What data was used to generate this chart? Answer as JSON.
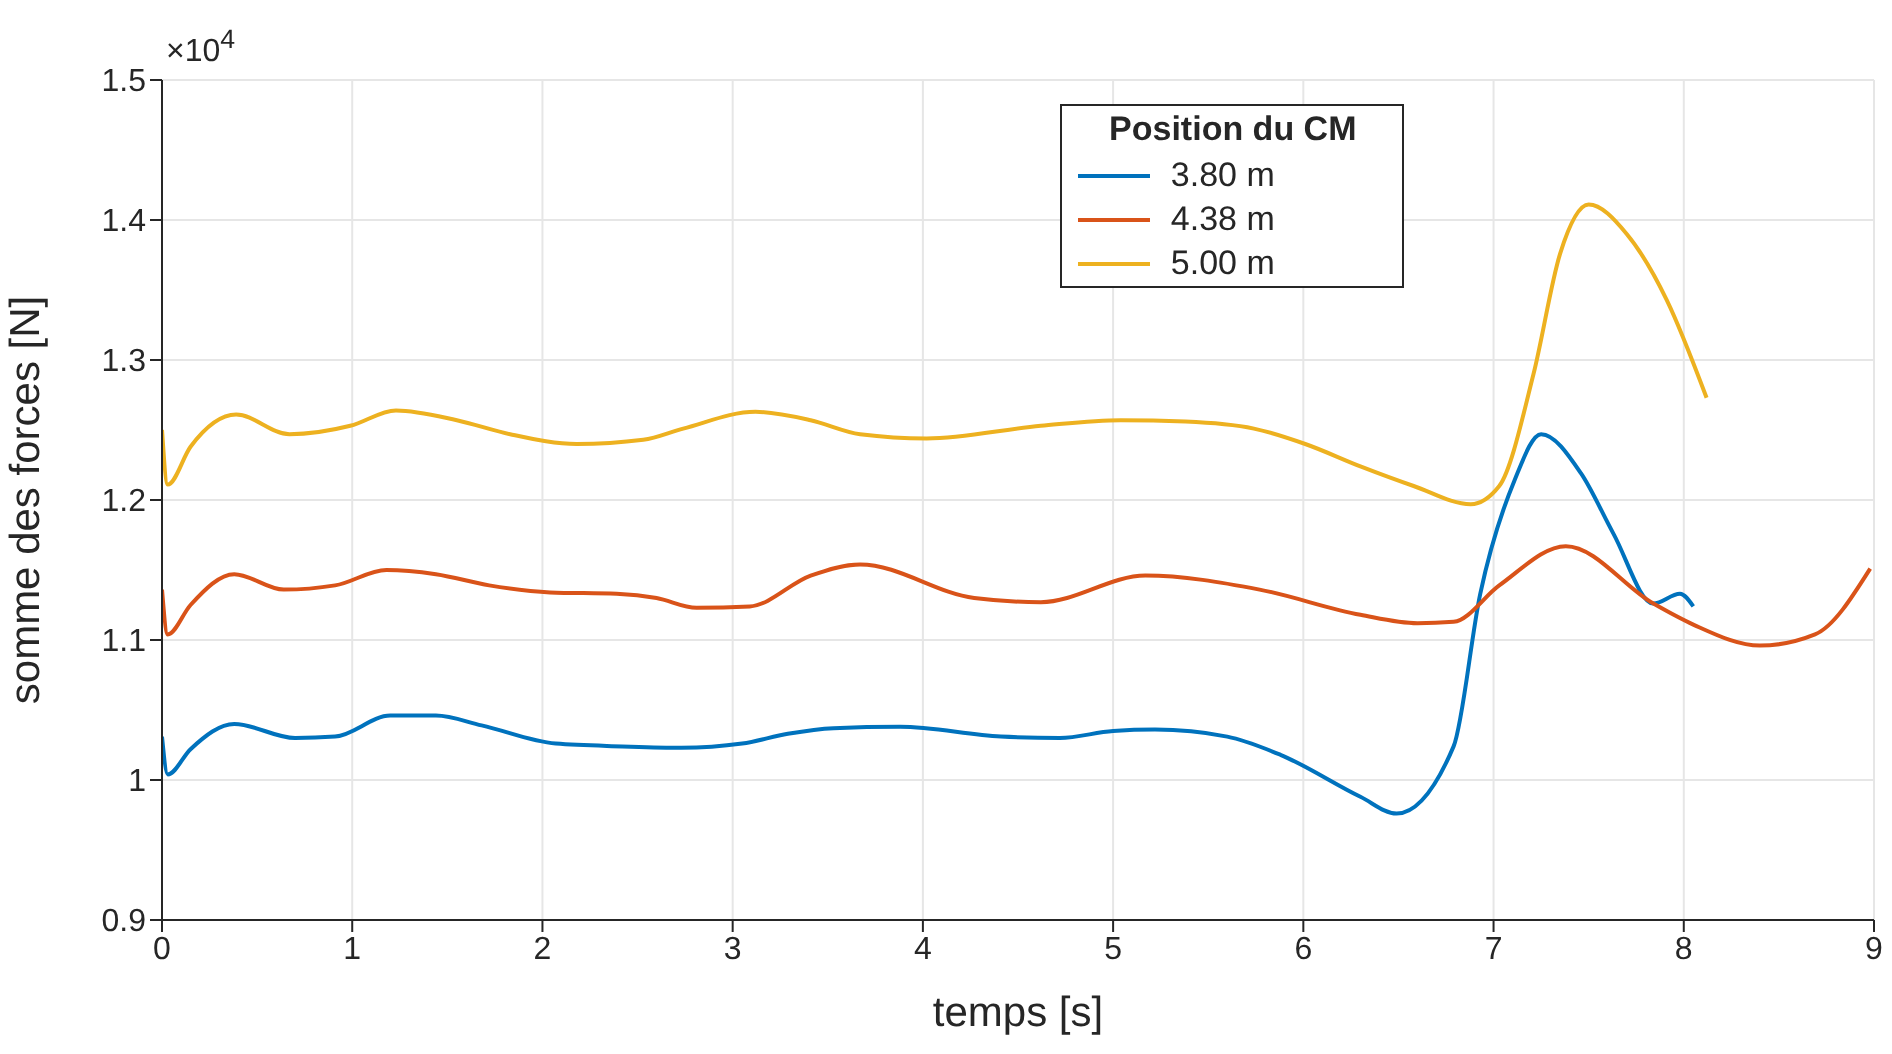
{
  "chart_data": {
    "type": "line",
    "xlabel": "temps  [s]",
    "ylabel": "somme des forces [N]",
    "legend_title": "Position du CM",
    "annotations": [
      "×10$^{4}$"
    ],
    "xlim": [
      0,
      9
    ],
    "xticks": [
      0,
      1,
      2,
      3,
      4,
      5,
      6,
      7,
      8,
      9
    ],
    "ylim": [
      0.9,
      1.5
    ],
    "yticks": [
      0.9,
      1,
      1.1,
      1.2,
      1.3,
      1.4,
      1.5
    ],
    "grid": true,
    "legend": "top right",
    "marker": "none",
    "line_style": "solid",
    "series": [
      {
        "name": "3.80 m",
        "color": "#0072bd",
        "x": [
          0,
          0.03,
          0.15,
          0.38,
          0.7,
          0.91,
          1.2,
          1.44,
          1.68,
          2.07,
          2.42,
          2.73,
          3.05,
          3.29,
          3.53,
          3.88,
          4.41,
          4.72,
          5.0,
          5.22,
          5.6,
          5.88,
          6.3,
          6.49,
          6.79,
          6.93,
          7.11,
          7.25,
          7.46,
          7.63,
          7.84,
          7.98,
          8.05
        ],
        "values": [
          1.031,
          1.004,
          1.022,
          1.04,
          1.03,
          1.031,
          1.046,
          1.046,
          1.039,
          1.026,
          1.024,
          1.023,
          1.026,
          1.033,
          1.037,
          1.038,
          1.031,
          1.03,
          1.035,
          1.036,
          1.031,
          1.018,
          0.988,
          0.976,
          1.024,
          1.133,
          1.214,
          1.247,
          1.219,
          1.176,
          1.126,
          1.133,
          1.124
        ]
      },
      {
        "name": "4.38 m",
        "color": "#d95319",
        "x": [
          0,
          0.03,
          0.15,
          0.38,
          0.64,
          0.91,
          1.18,
          1.44,
          1.72,
          2.04,
          2.39,
          2.6,
          2.81,
          3.09,
          3.41,
          3.67,
          4.27,
          4.62,
          5.17,
          5.77,
          6.3,
          6.6,
          6.79,
          7.03,
          7.38,
          7.84,
          8.05,
          8.4,
          8.69,
          8.98
        ],
        "values": [
          1.136,
          1.104,
          1.125,
          1.147,
          1.136,
          1.139,
          1.15,
          1.147,
          1.139,
          1.134,
          1.133,
          1.13,
          1.123,
          1.124,
          1.146,
          1.154,
          1.13,
          1.127,
          1.146,
          1.136,
          1.118,
          1.112,
          1.113,
          1.139,
          1.167,
          1.126,
          1.111,
          1.096,
          1.104,
          1.151
        ]
      },
      {
        "name": "5.00 m",
        "color": "#edb120",
        "x": [
          0,
          0.03,
          0.15,
          0.39,
          0.67,
          0.99,
          1.23,
          1.55,
          1.83,
          2.18,
          2.53,
          2.74,
          3.12,
          3.41,
          3.67,
          4.02,
          4.62,
          5.04,
          5.38,
          5.74,
          6.01,
          6.3,
          6.58,
          6.88,
          7.03,
          7.21,
          7.35,
          7.5,
          7.7,
          7.91,
          8.12
        ],
        "values": [
          1.25,
          1.211,
          1.238,
          1.261,
          1.247,
          1.253,
          1.264,
          1.257,
          1.247,
          1.24,
          1.243,
          1.251,
          1.263,
          1.257,
          1.247,
          1.244,
          1.253,
          1.257,
          1.256,
          1.251,
          1.24,
          1.224,
          1.21,
          1.197,
          1.21,
          1.29,
          1.376,
          1.411,
          1.39,
          1.343,
          1.273
        ]
      }
    ]
  }
}
